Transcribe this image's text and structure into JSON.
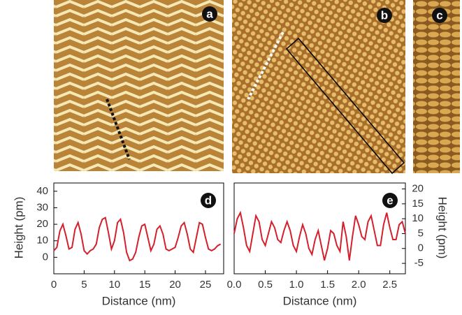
{
  "images": [
    {
      "label": "a"
    },
    {
      "label": "b"
    },
    {
      "label": "c"
    }
  ],
  "chart_data": [
    {
      "type": "line",
      "panel_label": "d",
      "x_label": "Distance (nm)",
      "y_label": "Height (pm)",
      "x": [
        0,
        0.5,
        1,
        1.5,
        2,
        2.5,
        3,
        3.5,
        4,
        4.5,
        5,
        5.5,
        6,
        6.5,
        7,
        7.5,
        8,
        8.5,
        9,
        9.5,
        10,
        10.5,
        11,
        11.5,
        12,
        12.5,
        13,
        13.5,
        14,
        14.5,
        15,
        15.5,
        16,
        16.5,
        17,
        17.5,
        18,
        18.5,
        19,
        19.5,
        20,
        20.5,
        21,
        21.5,
        22,
        22.5,
        23,
        23.5,
        24,
        24.5,
        25,
        25.5,
        26,
        26.5,
        27,
        27.5
      ],
      "series": [
        {
          "color": "#d4202c",
          "values": [
            4,
            6,
            16,
            20,
            13,
            5,
            6,
            17,
            21,
            14,
            4,
            2,
            4,
            5,
            8,
            18,
            23,
            24,
            15,
            5,
            10,
            21,
            23,
            15,
            3,
            -2,
            -1,
            3,
            12,
            19,
            20,
            12,
            4,
            8,
            17,
            19,
            14,
            5,
            4,
            5,
            6,
            12,
            19,
            21,
            14,
            5,
            3,
            12,
            21,
            20,
            12,
            5,
            4,
            5,
            7,
            8
          ]
        }
      ],
      "xlim": [
        0,
        28
      ],
      "xticks": [
        0,
        5,
        10,
        15,
        20,
        25
      ],
      "ylim": [
        -10,
        45
      ],
      "yticks": [
        0,
        10,
        20,
        30,
        40
      ]
    },
    {
      "type": "line",
      "panel_label": "e",
      "x_label": "Distance (nm)",
      "y_label": "Height (pm)",
      "x": [
        0,
        0.05,
        0.1,
        0.15,
        0.2,
        0.25,
        0.3,
        0.35,
        0.4,
        0.45,
        0.5,
        0.55,
        0.6,
        0.65,
        0.7,
        0.75,
        0.8,
        0.85,
        0.9,
        0.95,
        1,
        1.05,
        1.1,
        1.15,
        1.2,
        1.25,
        1.3,
        1.35,
        1.4,
        1.45,
        1.5,
        1.55,
        1.6,
        1.65,
        1.7,
        1.75,
        1.8,
        1.85,
        1.9,
        1.95,
        2,
        2.05,
        2.1,
        2.15,
        2.2,
        2.25,
        2.3,
        2.35,
        2.4,
        2.45,
        2.5,
        2.55,
        2.6,
        2.65,
        2.7,
        2.75
      ],
      "series": [
        {
          "color": "#d4202c",
          "axis": "y2",
          "values": [
            5,
            10,
            12,
            7,
            1,
            -1,
            5,
            11,
            9,
            3,
            1,
            5,
            9,
            7,
            3,
            2,
            6,
            9,
            6,
            1,
            -1,
            4,
            8,
            5,
            0,
            -2,
            3,
            6,
            1,
            -4,
            0,
            6,
            5,
            1,
            -1,
            9,
            4,
            -4,
            4,
            11,
            8,
            4,
            3,
            9,
            11,
            6,
            1,
            1,
            8,
            12,
            7,
            3,
            3,
            8,
            9,
            5
          ]
        }
      ],
      "xlim": [
        0,
        2.75
      ],
      "xticks": [
        {
          "value": 0,
          "label": "0.0"
        },
        0.5,
        {
          "value": 1,
          "label": "1.0"
        },
        1.5,
        {
          "value": 2,
          "label": "2.0"
        },
        2.5
      ],
      "y2lim": [
        -8.5,
        22
      ],
      "y2ticks": [
        -5,
        0,
        5,
        10,
        15,
        20
      ]
    }
  ]
}
